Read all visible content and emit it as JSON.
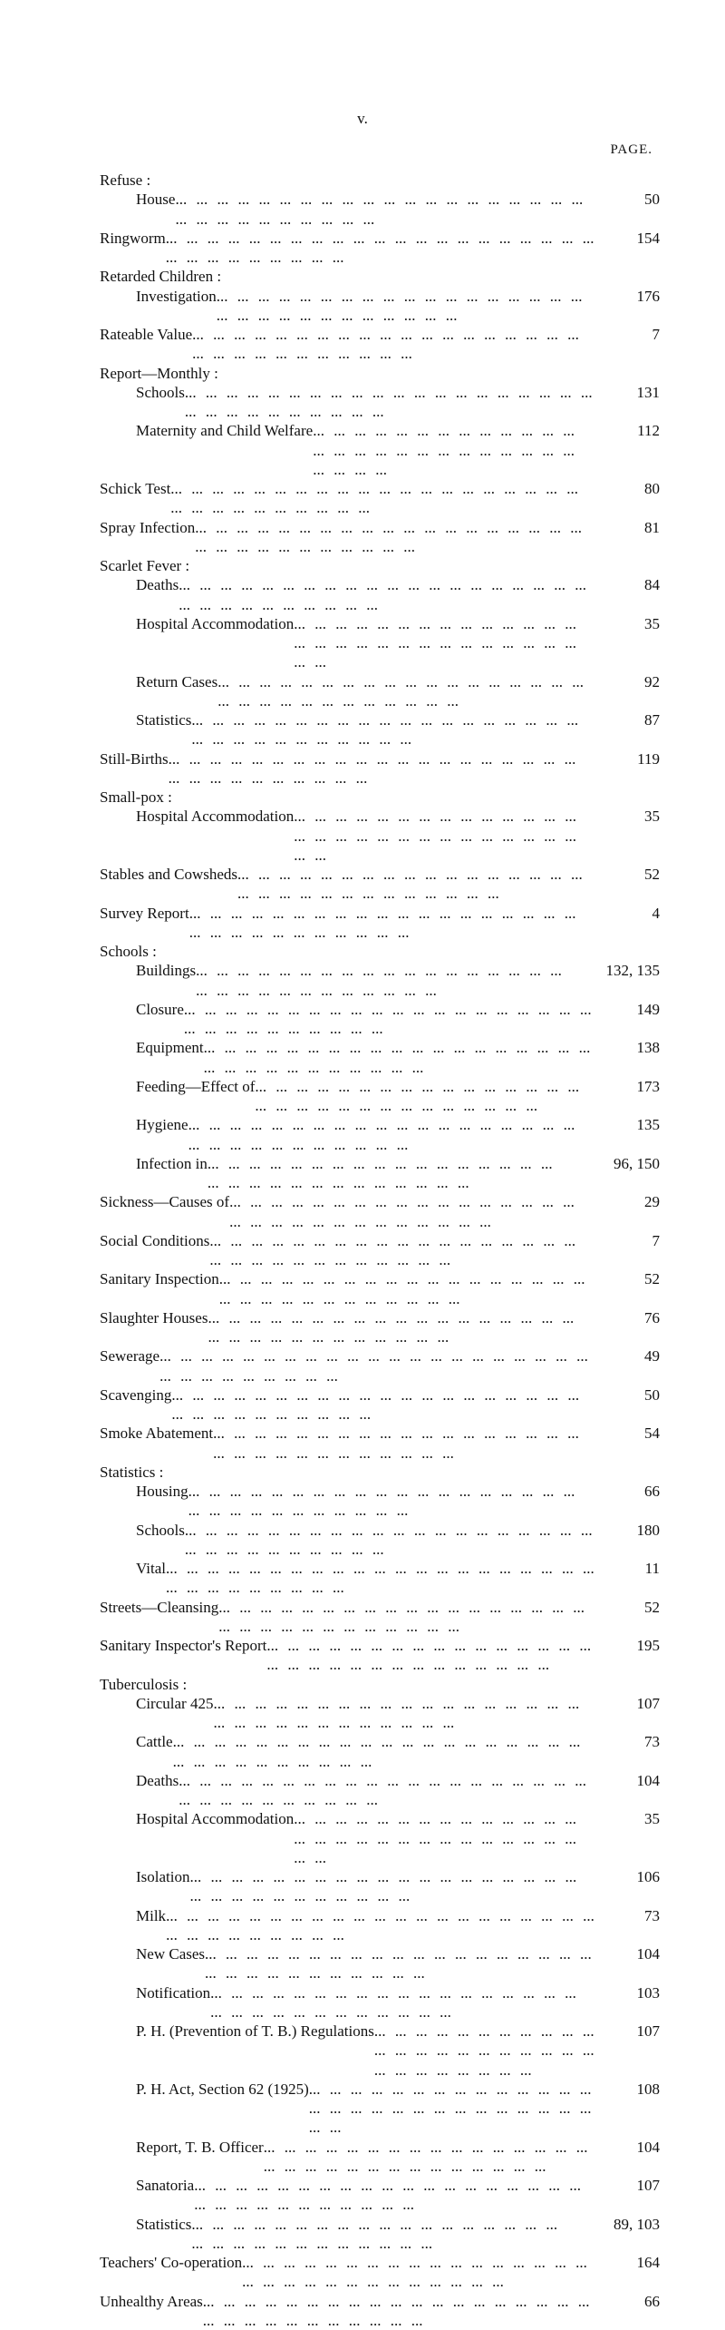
{
  "page_header": {
    "roman": "v.",
    "label": "PAGE."
  },
  "entries": [
    {
      "label": "Refuse :",
      "indent": 0,
      "header": true
    },
    {
      "label": "House",
      "indent": 1,
      "page": "50"
    },
    {
      "label": "Ringworm",
      "indent": 0,
      "page": "154"
    },
    {
      "label": "Retarded Children :",
      "indent": 0,
      "header": true
    },
    {
      "label": "Investigation",
      "indent": 1,
      "page": "176"
    },
    {
      "label": "Rateable Value",
      "indent": 0,
      "page": "7"
    },
    {
      "label": "Report—Monthly :",
      "indent": 0,
      "header": true
    },
    {
      "label": "Schools",
      "indent": 1,
      "page": "131"
    },
    {
      "label": "Maternity and Child Welfare",
      "indent": 1,
      "page": "112"
    },
    {
      "label": "Schick Test",
      "indent": 0,
      "page": "80"
    },
    {
      "label": "Spray Infection",
      "indent": 0,
      "page": "81"
    },
    {
      "label": "Scarlet Fever :",
      "indent": 0,
      "header": true
    },
    {
      "label": "Deaths",
      "indent": 1,
      "page": "84"
    },
    {
      "label": "Hospital Accommodation",
      "indent": 1,
      "page": "35"
    },
    {
      "label": "Return Cases",
      "indent": 1,
      "page": "92"
    },
    {
      "label": "Statistics",
      "indent": 1,
      "page": "87"
    },
    {
      "label": "Still-Births",
      "indent": 0,
      "page": "119"
    },
    {
      "label": "Small-pox :",
      "indent": 0,
      "header": true
    },
    {
      "label": "Hospital Accommodation",
      "indent": 1,
      "page": "35"
    },
    {
      "label": "Stables and Cowsheds",
      "indent": 0,
      "page": "52"
    },
    {
      "label": "Survey Report",
      "indent": 0,
      "page": "4"
    },
    {
      "label": "Schools :",
      "indent": 0,
      "header": true
    },
    {
      "label": "Buildings",
      "indent": 1,
      "page": "132, 135",
      "wide": true
    },
    {
      "label": "Closure",
      "indent": 1,
      "page": "149"
    },
    {
      "label": "Equipment",
      "indent": 1,
      "page": "138"
    },
    {
      "label": "Feeding—Effect of",
      "indent": 1,
      "page": "173"
    },
    {
      "label": "Hygiene",
      "indent": 1,
      "page": "135"
    },
    {
      "label": "Infection in",
      "indent": 1,
      "page": "96, 150",
      "wide": true
    },
    {
      "label": "Sickness—Causes of",
      "indent": 0,
      "page": "29"
    },
    {
      "label": "Social Conditions",
      "indent": 0,
      "page": "7"
    },
    {
      "label": "Sanitary Inspection",
      "indent": 0,
      "page": "52"
    },
    {
      "label": "Slaughter Houses",
      "indent": 0,
      "page": "76"
    },
    {
      "label": "Sewerage",
      "indent": 0,
      "page": "49"
    },
    {
      "label": "Scavenging",
      "indent": 0,
      "page": "50"
    },
    {
      "label": "Smoke Abatement",
      "indent": 0,
      "page": "54"
    },
    {
      "label": "Statistics :",
      "indent": 0,
      "header": true
    },
    {
      "label": "Housing",
      "indent": 1,
      "page": "66"
    },
    {
      "label": "Schools",
      "indent": 1,
      "page": "180"
    },
    {
      "label": "Vital",
      "indent": 1,
      "page": "11"
    },
    {
      "label": "Streets—Cleansing",
      "indent": 0,
      "page": "52"
    },
    {
      "label": "Sanitary Inspector's Report",
      "indent": 0,
      "page": "195"
    },
    {
      "label": "Tuberculosis :",
      "indent": 0,
      "header": true
    },
    {
      "label": "Circular 425",
      "indent": 1,
      "page": "107"
    },
    {
      "label": "Cattle",
      "indent": 1,
      "page": "73"
    },
    {
      "label": "Deaths",
      "indent": 1,
      "page": "104"
    },
    {
      "label": "Hospital Accommodation",
      "indent": 1,
      "page": "35"
    },
    {
      "label": "Isolation",
      "indent": 1,
      "page": "106"
    },
    {
      "label": "Milk",
      "indent": 1,
      "page": "73"
    },
    {
      "label": "New Cases",
      "indent": 1,
      "page": "104"
    },
    {
      "label": "Notification",
      "indent": 1,
      "page": "103"
    },
    {
      "label": "P. H. (Prevention of T. B.) Regulations",
      "indent": 1,
      "page": "107"
    },
    {
      "label": "P. H. Act, Section 62 (1925)",
      "indent": 1,
      "page": "108"
    },
    {
      "label": "Report, T. B. Officer",
      "indent": 1,
      "page": "104"
    },
    {
      "label": "Sanatoria",
      "indent": 1,
      "page": "107"
    },
    {
      "label": "Statistics",
      "indent": 1,
      "page": "89, 103",
      "wide": true
    },
    {
      "label": "Teachers' Co-operation",
      "indent": 0,
      "page": "164"
    },
    {
      "label": "Unhealthy Areas",
      "indent": 0,
      "page": "66"
    }
  ]
}
